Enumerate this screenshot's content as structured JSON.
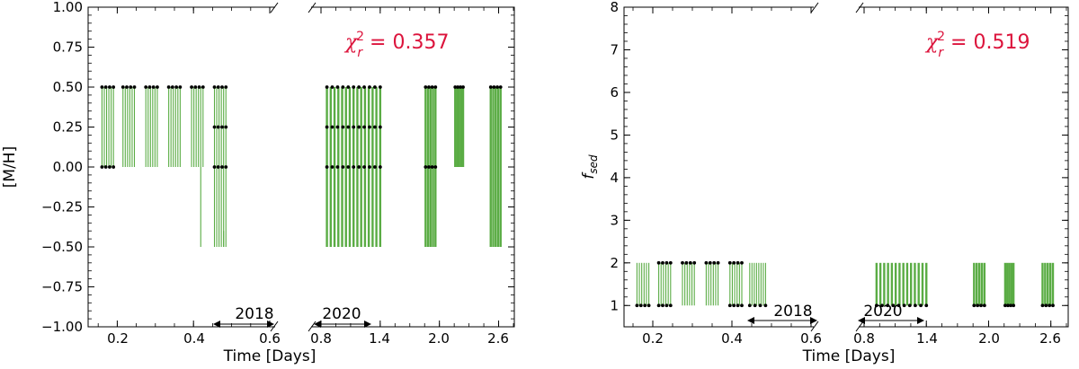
{
  "colors": {
    "bar": "#5aac44",
    "marker": "#000000",
    "chi": "#dc143c"
  },
  "panels": [
    {
      "ylabel": "[M/H]",
      "xlabel": "Time [Days]",
      "chi_value": "= 0.357",
      "yticks": [
        "1.00",
        "0.75",
        "0.50",
        "0.25",
        "0.00",
        "−0.25",
        "−0.50",
        "−0.75",
        "−1.00"
      ],
      "xticks_2018": [
        "0.2",
        "0.4",
        "0.6"
      ],
      "xticks_2020": [
        "0.8",
        "1.4",
        "2.0",
        "2.6"
      ],
      "year_2018": "2018",
      "year_2020": "2020"
    },
    {
      "ylabel": "f_sed",
      "ylabel_main": "f",
      "ylabel_sub": "sed",
      "xlabel": "Time [Days]",
      "chi_value": "= 0.519",
      "yticks": [
        "8",
        "7",
        "6",
        "5",
        "4",
        "3",
        "2",
        "1"
      ],
      "xticks_2018": [
        "0.2",
        "0.4",
        "0.6"
      ],
      "xticks_2020": [
        "0.8",
        "1.4",
        "2.0",
        "2.6"
      ],
      "year_2018": "2018",
      "year_2020": "2020"
    }
  ],
  "chart_data": [
    {
      "type": "scatter",
      "title": "",
      "xlabel": "Time [Days]",
      "ylabel": "[M/H]",
      "ylim": [
        -1.0,
        1.0
      ],
      "broken_x_axis": true,
      "segments": [
        {
          "label": "2018",
          "xlim": [
            0.1,
            0.6
          ],
          "ticks": [
            0.2,
            0.4,
            0.6
          ]
        },
        {
          "label": "2020",
          "xlim": [
            0.8,
            2.75
          ],
          "ticks": [
            0.8,
            1.4,
            2.0,
            2.6
          ]
        }
      ],
      "annotation": "χ_r^2 = 0.357",
      "groups_2018": [
        {
          "x": [
            0.16,
            0.19
          ],
          "range": [
            0.0,
            0.5
          ],
          "markers": [
            0.5,
            0.0
          ]
        },
        {
          "x": [
            0.215,
            0.245
          ],
          "range": [
            0.0,
            0.5
          ],
          "markers": [
            0.5
          ]
        },
        {
          "x": [
            0.275,
            0.305
          ],
          "range": [
            0.0,
            0.5
          ],
          "markers": [
            0.5
          ]
        },
        {
          "x": [
            0.335,
            0.365
          ],
          "range": [
            0.0,
            0.5
          ],
          "markers": [
            0.5
          ]
        },
        {
          "x": [
            0.395,
            0.425
          ],
          "range": [
            0.0,
            0.5
          ],
          "markers": [
            0.5
          ],
          "outlier_to": -0.5
        },
        {
          "x": [
            0.455,
            0.485
          ],
          "range": [
            -0.5,
            0.5
          ],
          "markers": [
            0.5,
            0.25,
            0.0
          ],
          "outlier_to": -0.4
        }
      ],
      "groups_2020": [
        {
          "x": [
            0.86,
            1.4
          ],
          "range": [
            -0.5,
            0.5
          ],
          "markers": [
            0.5,
            0.25,
            0.0
          ]
        },
        {
          "x": [
            1.86,
            1.96
          ],
          "range": [
            -0.5,
            0.5
          ],
          "markers": [
            0.5,
            0.0
          ]
        },
        {
          "x": [
            2.16,
            2.24
          ],
          "range": [
            0.0,
            0.5
          ],
          "markers": [
            0.5
          ]
        },
        {
          "x": [
            2.52,
            2.62
          ],
          "range": [
            -0.5,
            0.5
          ],
          "markers": [
            0.5
          ]
        }
      ]
    },
    {
      "type": "scatter",
      "title": "",
      "xlabel": "Time [Days]",
      "ylabel": "f_sed",
      "ylim": [
        0.5,
        8.0
      ],
      "broken_x_axis": true,
      "segments": [
        {
          "label": "2018",
          "xlim": [
            0.1,
            0.6
          ],
          "ticks": [
            0.2,
            0.4,
            0.6
          ]
        },
        {
          "label": "2020",
          "xlim": [
            0.8,
            2.75
          ],
          "ticks": [
            0.8,
            1.4,
            2.0,
            2.6
          ]
        }
      ],
      "annotation": "χ_r^2 = 0.519",
      "groups_2018": [
        {
          "x": [
            0.16,
            0.19
          ],
          "range": [
            1,
            2
          ],
          "markers": [
            1
          ]
        },
        {
          "x": [
            0.215,
            0.245
          ],
          "range": [
            1,
            2
          ],
          "markers": [
            2,
            1
          ]
        },
        {
          "x": [
            0.275,
            0.305
          ],
          "range": [
            1,
            2
          ],
          "markers": [
            2
          ]
        },
        {
          "x": [
            0.335,
            0.365
          ],
          "range": [
            1,
            2
          ],
          "markers": [
            2
          ]
        },
        {
          "x": [
            0.395,
            0.425
          ],
          "range": [
            1,
            2
          ],
          "markers": [
            2,
            1
          ]
        },
        {
          "x": [
            0.445,
            0.485
          ],
          "range": [
            1,
            2
          ],
          "markers": [
            1
          ]
        }
      ],
      "groups_2020": [
        {
          "x": [
            0.92,
            1.4
          ],
          "range": [
            1,
            2
          ],
          "markers": [
            1
          ]
        },
        {
          "x": [
            1.86,
            1.96
          ],
          "range": [
            1,
            2
          ],
          "markers": [
            1
          ]
        },
        {
          "x": [
            2.16,
            2.24
          ],
          "range": [
            1,
            2
          ],
          "markers": [
            1
          ]
        },
        {
          "x": [
            2.52,
            2.62
          ],
          "range": [
            1,
            2
          ],
          "markers": [
            1
          ]
        }
      ]
    }
  ]
}
